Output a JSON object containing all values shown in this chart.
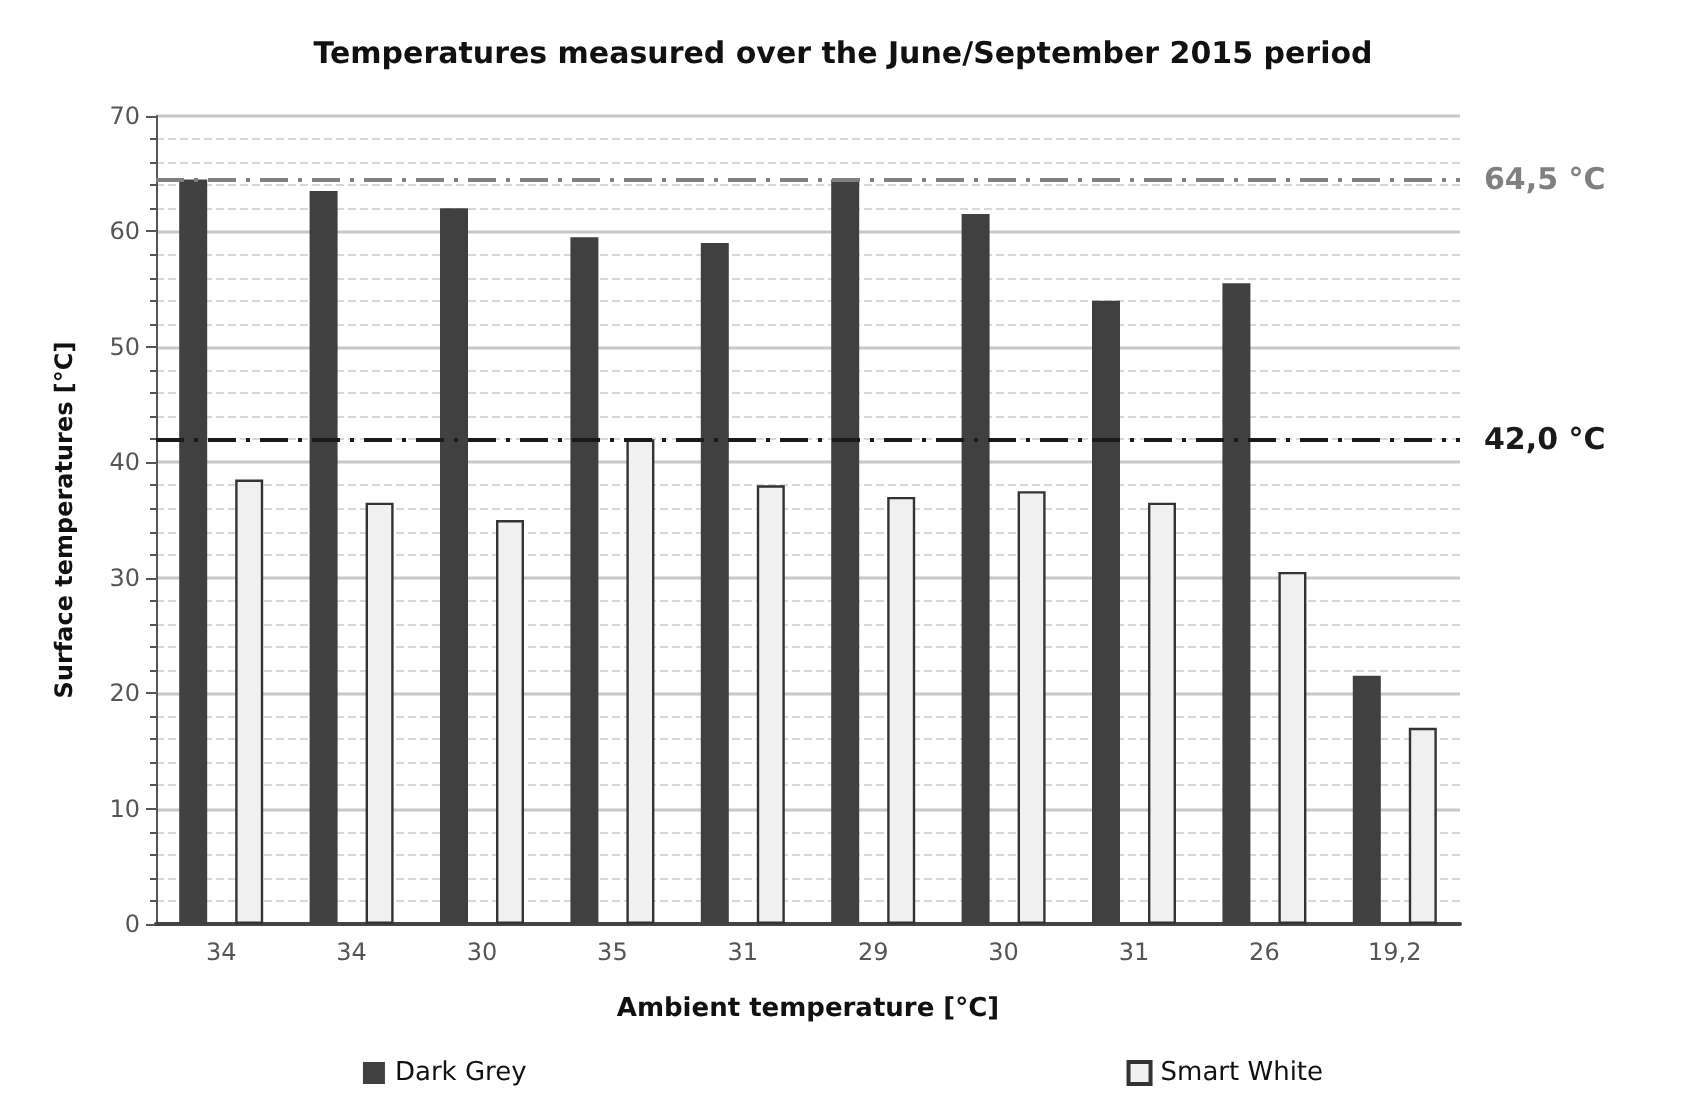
{
  "chart_data": {
    "type": "bar",
    "title": "Temperatures measured over the June/September 2015 period",
    "xlabel": "Ambient temperature [°C]",
    "ylabel": "Surface temperatures [°C]",
    "categories": [
      "34",
      "34",
      "30",
      "35",
      "31",
      "29",
      "30",
      "31",
      "26",
      "19,2"
    ],
    "series": [
      {
        "name": "Dark Grey",
        "color": "#404040",
        "values": [
          64.5,
          63.5,
          62,
          59.5,
          59,
          64.5,
          61.5,
          54,
          55.5,
          21.5
        ]
      },
      {
        "name": "Smart White",
        "color": "#f0f0f0",
        "values": [
          38.5,
          36.5,
          35,
          42,
          38,
          37,
          37.5,
          36.5,
          30.5,
          17
        ]
      }
    ],
    "ylim": [
      0,
      70
    ],
    "yticks": [
      0,
      10,
      20,
      30,
      40,
      50,
      60,
      70
    ],
    "grid": "y",
    "legend": "bottom",
    "ref_lines": [
      {
        "axis": "y",
        "value": 64.5,
        "label": "64,5 °C",
        "color": "#808080",
        "line_style": "dashed"
      },
      {
        "axis": "y",
        "value": 42,
        "label": "42,0 °C",
        "color": "#1a1a1a",
        "line_style": "dashed"
      }
    ]
  }
}
